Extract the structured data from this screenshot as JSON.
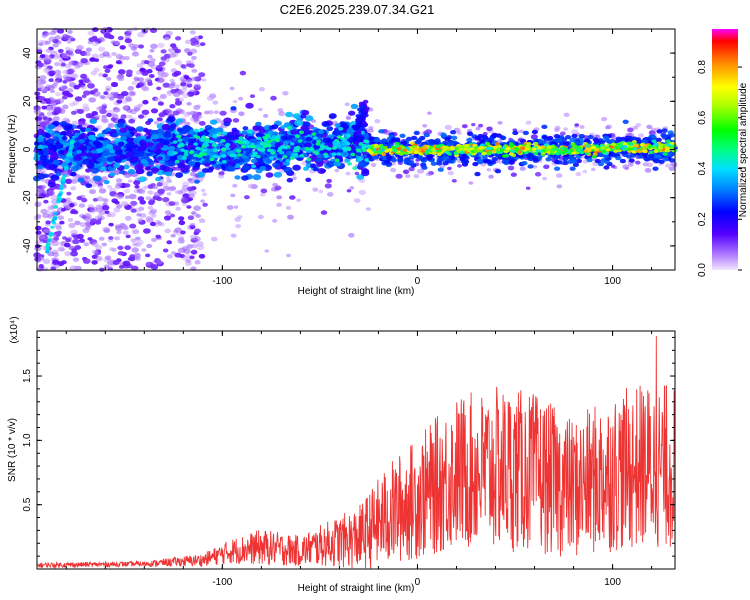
{
  "title": "C2E6.2025.239.07.34.G21",
  "chart_data": [
    {
      "type": "heatmap",
      "name": "spectrogram",
      "xlabel": "Height of straight line (km)",
      "ylabel": "Frequency (Hz)",
      "xlim": [
        -195,
        132
      ],
      "ylim": [
        -50,
        50
      ],
      "xticks": [
        -100,
        0,
        100
      ],
      "yticks": [
        -40,
        -20,
        0,
        20,
        40
      ],
      "ytick_labels": [
        "-40",
        "-20",
        "0",
        "20",
        "40"
      ],
      "colorbar": {
        "label": "Normalized spectral amplitude",
        "range": [
          0,
          0.95
        ],
        "ticks": [
          0.0,
          0.2,
          0.4,
          0.6,
          0.8
        ],
        "tick_labels": [
          "0.0",
          "0.2",
          "0.4",
          "0.6",
          "0.8"
        ]
      },
      "features": [
        {
          "name": "diffuse noise",
          "x_range": [
            -195,
            -110
          ],
          "freq_range": [
            -50,
            50
          ],
          "amplitude": 0.05
        },
        {
          "name": "main band",
          "x_range": [
            -195,
            -25
          ],
          "center_freq": 0,
          "half_width": 8,
          "amplitude": 0.25
        },
        {
          "name": "stable signal",
          "x_range": [
            -25,
            132
          ],
          "center_freq": 0,
          "half_width": 3,
          "amplitude": 0.85
        },
        {
          "name": "rising feature",
          "x_from": -32,
          "x_to": -27,
          "freq_from": 2,
          "freq_to": 18,
          "amplitude": 0.15
        },
        {
          "name": "oblique streak",
          "x_from": -190,
          "x_to": -176,
          "freq_from": -42,
          "freq_to": 6,
          "amplitude": 0.35
        }
      ]
    },
    {
      "type": "line",
      "name": "snr",
      "xlabel": "Height of straight line (km)",
      "ylabel": "SNR (10 * v/v)",
      "y_multiplier": "(x10⁴)",
      "xlim": [
        -195,
        132
      ],
      "ylim": [
        0,
        1.85
      ],
      "xticks": [
        -100,
        0,
        100
      ],
      "yticks": [
        0.5,
        1.0,
        1.5
      ],
      "ytick_labels": [
        "0.5",
        "1.0",
        "1.5"
      ],
      "color": "#ee3333",
      "envelope": {
        "x": [
          -195,
          -140,
          -110,
          -95,
          -80,
          -60,
          -45,
          -30,
          -15,
          0,
          20,
          45,
          60,
          80,
          100,
          115,
          132
        ],
        "mean": [
          0.03,
          0.04,
          0.07,
          0.14,
          0.17,
          0.14,
          0.2,
          0.24,
          0.42,
          0.55,
          0.75,
          0.78,
          0.75,
          0.62,
          0.75,
          0.8,
          0.8
        ],
        "amp": [
          0.02,
          0.02,
          0.05,
          0.1,
          0.14,
          0.12,
          0.18,
          0.25,
          0.4,
          0.48,
          0.6,
          0.65,
          0.62,
          0.55,
          0.62,
          0.65,
          0.65
        ]
      },
      "peak": 1.81
    }
  ]
}
